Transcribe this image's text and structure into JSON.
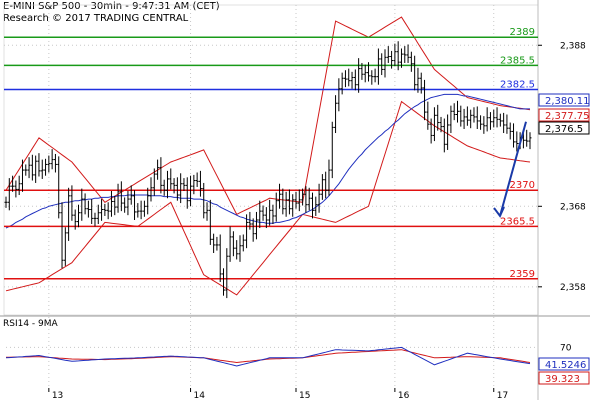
{
  "header": {
    "line1": "E-MINI S&P 500 - 30min - 9:47:31 AM (CET)",
    "line2": "Research © 2017 TRADING CENTRAL"
  },
  "colors": {
    "candles": "#000000",
    "ma": "#1f2fbf",
    "bands": "#d21a1a",
    "resistance": "#199a19",
    "pivot": "#1f2fe0",
    "support": "#e01010",
    "arrow": "#1a3aa8",
    "rsi": "#1f2fbf",
    "rsi_ma": "#d21a1a"
  },
  "chart_data": [
    {
      "type": "line",
      "subtype": "candlestick",
      "title": "E-MINI S&P 500 - 30min - 9:47:31 AM (CET)",
      "x_ticks": [
        "13",
        "14",
        "15",
        "16",
        "17"
      ],
      "y_ticks": [
        "2,388",
        "2,368",
        "2,358"
      ],
      "y_tick_values": [
        2388,
        2368,
        2358
      ],
      "ylim": [
        2354.5,
        2393
      ],
      "grid": true,
      "levels": [
        {
          "label": "2389",
          "value": 2389,
          "kind": "resistance"
        },
        {
          "label": "2385.5",
          "value": 2385.5,
          "kind": "resistance"
        },
        {
          "label": "2382.5",
          "value": 2382.5,
          "kind": "pivot"
        },
        {
          "label": "2370",
          "value": 2370,
          "kind": "support"
        },
        {
          "label": "2365.5",
          "value": 2365.5,
          "kind": "support"
        },
        {
          "label": "2359",
          "value": 2359,
          "kind": "support"
        }
      ],
      "price_boxes": [
        {
          "label": "2,380.11",
          "value": 2380.11,
          "kind": "ma"
        },
        {
          "label": "2,377.75",
          "value": 2377.75,
          "kind": "band"
        },
        {
          "label": "2,376.5",
          "value": 2376.5,
          "kind": "last"
        }
      ],
      "series": [
        {
          "name": "price",
          "x": [
            0,
            1,
            2,
            3,
            4,
            5,
            6,
            7,
            8,
            9,
            10,
            11,
            12,
            13,
            14,
            15,
            16,
            17,
            18,
            19,
            20,
            21,
            22,
            23,
            24,
            25,
            26,
            27,
            28,
            29,
            30,
            31,
            32,
            33,
            34,
            35,
            36,
            37,
            38,
            39,
            40,
            41,
            42,
            43,
            44,
            45,
            46,
            47,
            48,
            49,
            50,
            51,
            52,
            53,
            54,
            55,
            56,
            57,
            58,
            59,
            60,
            61,
            62,
            63,
            64,
            65,
            66,
            67,
            68,
            69,
            70,
            71,
            72,
            73,
            74,
            75,
            76,
            77,
            78,
            79,
            80,
            81,
            82,
            83,
            84,
            85,
            86,
            87,
            88,
            89,
            90,
            91,
            92,
            93,
            94,
            95,
            96,
            97,
            98,
            99,
            100,
            101,
            102,
            103,
            104,
            105,
            106,
            107,
            108,
            109,
            110,
            111,
            112,
            113,
            114,
            115,
            116,
            117,
            118,
            119,
            120,
            121,
            122,
            123,
            124,
            125,
            126,
            127,
            128,
            129,
            130,
            131,
            132,
            133,
            134,
            135,
            136,
            137,
            138,
            139,
            140,
            141,
            142,
            143,
            144,
            145,
            146,
            147,
            148,
            149,
            150,
            151,
            152,
            153,
            154,
            155,
            156,
            157,
            158,
            159
          ],
          "values": [
            2368.5,
            2370.5,
            2370.5,
            2370.1,
            2370.8,
            2372.5,
            2372.5,
            2373.1,
            2371.9,
            2373.6,
            2372.4,
            2372.5,
            2373.2,
            2373.3,
            2373.8,
            2373.2,
            2367.2,
            2361.3,
            2364.7,
            2369.3,
            2366.9,
            2366.1,
            2367.2,
            2368.9,
            2367.7,
            2367.6,
            2366.5,
            2366.5,
            2367.2,
            2367.6,
            2367.5,
            2367.4,
            2368.6,
            2367.9,
            2369.8,
            2368.4,
            2367.9,
            2368.9,
            2369.3,
            2367.3,
            2367.4,
            2367.4,
            2368.0,
            2369.3,
            2370.3,
            2372.0,
            2372.8,
            2370.6,
            2370.0,
            2371.4,
            2370.8,
            2370.6,
            2369.4,
            2370.8,
            2370.6,
            2368.7,
            2370.5,
            2371.2,
            2371.1,
            2370.2,
            2367.2,
            2367.5,
            2363.9,
            2363.2,
            2363.2,
            2359.6,
            2357.6,
            2361.8,
            2364.2,
            2362.8,
            2362.1,
            2363.1,
            2363.8,
            2366.0,
            2365.8,
            2364.6,
            2366.3,
            2367.4,
            2366.9,
            2366.3,
            2367.5,
            2366.8,
            2368.7,
            2369.5,
            2367.7,
            2368.8,
            2367.7,
            2368.8,
            2368.4,
            2368.8,
            2369.5,
            2368.2,
            2369.0,
            2367.5,
            2368.2,
            2369.5,
            2371.3,
            2370.0,
            2372.5,
            2377.8,
            2380.8,
            2382.6,
            2383.9,
            2383.8,
            2383.6,
            2384.0,
            2383.1,
            2385.1,
            2384.4,
            2384.6,
            2384.2,
            2384.1,
            2384.1,
            2386.3,
            2385.0,
            2386.5,
            2386.6,
            2386.1,
            2387.2,
            2385.9,
            2386.9,
            2386.8,
            2386.5,
            2385.7,
            2383.1,
            2383.9,
            2382.7,
            2379.7,
            2378.2,
            2376.8,
            2379.3,
            2378.4,
            2377.9,
            2375.7,
            2378.1,
            2379.8,
            2379.4,
            2379.8,
            2378.6,
            2379.1,
            2378.7,
            2379.3,
            2379.1,
            2378.6,
            2378.2,
            2378.0,
            2379.0,
            2378.5,
            2379.0,
            2378.8,
            2378.6,
            2378.1,
            2377.7,
            2377.3,
            2376.0,
            2375.8,
            2376.5,
            2376.2,
            2376.1,
            2376.5
          ]
        },
        {
          "name": "moving average",
          "x": [
            0,
            1,
            2,
            3,
            4,
            5,
            6,
            7,
            8,
            9,
            10,
            11,
            12,
            13,
            14,
            15,
            16,
            17,
            18,
            19,
            20,
            21,
            22,
            23,
            24,
            25,
            26,
            27,
            28,
            29,
            30,
            31,
            32,
            33,
            34,
            35,
            36,
            37,
            38,
            39,
            40,
            41,
            42,
            43,
            44,
            45,
            46,
            47,
            48,
            49,
            50,
            51,
            52,
            53,
            54,
            55,
            56,
            57,
            58,
            59,
            60,
            61,
            62,
            63,
            64,
            65,
            66,
            67,
            68,
            69,
            70,
            71,
            72,
            73,
            74,
            75,
            76,
            77,
            78,
            79,
            80,
            81,
            82,
            83,
            84,
            85,
            86,
            87,
            88,
            89,
            90,
            91,
            92,
            93,
            94,
            95,
            96,
            97,
            98,
            99,
            100,
            101,
            102,
            103,
            104,
            105,
            106,
            107,
            108,
            109,
            110,
            111,
            112,
            113,
            114,
            115,
            116,
            117,
            118,
            119,
            120,
            121,
            122,
            123,
            124,
            125,
            126,
            127,
            128,
            129,
            130,
            131,
            132,
            133,
            134,
            135,
            136,
            137,
            138,
            139,
            140,
            141,
            142,
            143,
            144,
            145,
            146,
            147,
            148,
            149,
            150,
            151,
            152,
            153,
            154,
            155,
            156,
            157,
            158,
            159
          ],
          "values": [
            2365.3,
            2365.5,
            2365.7,
            2366.0,
            2366.2,
            2366.4,
            2366.7,
            2366.9,
            2367.1,
            2367.3,
            2367.5,
            2367.7,
            2367.8,
            2368.0,
            2368.1,
            2368.2,
            2368.3,
            2368.4,
            2368.5,
            2368.5,
            2368.6,
            2368.7,
            2368.7,
            2368.8,
            2368.8,
            2368.9,
            2368.9,
            2369.0,
            2369.0,
            2369.1,
            2369.1,
            2369.1,
            2369.2,
            2369.2,
            2369.3,
            2369.3,
            2369.3,
            2369.4,
            2369.4,
            2369.4,
            2369.4,
            2369.4,
            2369.4,
            2369.4,
            2369.3,
            2369.3,
            2369.3,
            2369.3,
            2369.2,
            2369.2,
            2369.2,
            2369.1,
            2369.1,
            2369.0,
            2369.0,
            2369.0,
            2369.0,
            2368.9,
            2368.9,
            2368.9,
            2368.8,
            2368.7,
            2368.5,
            2368.3,
            2368.2,
            2367.9,
            2367.7,
            2367.5,
            2367.3,
            2367.1,
            2366.9,
            2366.7,
            2366.6,
            2366.4,
            2366.3,
            2366.2,
            2366.1,
            2366.0,
            2366.0,
            2365.9,
            2365.9,
            2365.9,
            2366.0,
            2366.0,
            2366.1,
            2366.2,
            2366.3,
            2366.5,
            2366.6,
            2366.8,
            2367.0,
            2367.2,
            2367.4,
            2367.6,
            2367.9,
            2368.2,
            2368.5,
            2368.9,
            2369.3,
            2369.8,
            2370.3,
            2370.8,
            2371.4,
            2372.0,
            2372.6,
            2373.1,
            2373.6,
            2374.1,
            2374.5,
            2375.0,
            2375.4,
            2375.8,
            2376.2,
            2376.6,
            2376.9,
            2377.3,
            2377.6,
            2378.0,
            2378.4,
            2378.7,
            2379.1,
            2379.5,
            2379.8,
            2380.1,
            2380.4,
            2380.6,
            2380.9,
            2381.1,
            2381.3,
            2381.5,
            2381.6,
            2381.7,
            2381.8,
            2381.9,
            2381.9,
            2381.9,
            2381.9,
            2381.9,
            2381.8,
            2381.7,
            2381.7,
            2381.6,
            2381.5,
            2381.4,
            2381.3,
            2381.2,
            2381.1,
            2381.0,
            2380.9,
            2380.8,
            2380.7,
            2380.6,
            2380.5,
            2380.4,
            2380.3,
            2380.2,
            2380.1,
            2380.1,
            2380.1,
            2380.1
          ]
        },
        {
          "name": "upper band",
          "x": [
            0,
            10,
            20,
            30,
            40,
            50,
            60,
            70,
            80,
            90,
            100,
            110,
            120,
            130,
            140,
            150,
            159
          ],
          "values": [
            2370.0,
            2376.5,
            2373.5,
            2368.5,
            2371.0,
            2373.5,
            2375.0,
            2367.0,
            2369.0,
            2368.5,
            2391.0,
            2389.0,
            2391.5,
            2385.0,
            2381.5,
            2380.5,
            2380.0
          ]
        },
        {
          "name": "lower band",
          "x": [
            0,
            10,
            20,
            30,
            40,
            50,
            60,
            70,
            80,
            90,
            100,
            110,
            120,
            130,
            140,
            150,
            159
          ],
          "values": [
            2357.5,
            2358.5,
            2361.0,
            2366.0,
            2365.5,
            2368.5,
            2359.5,
            2357.0,
            2362.0,
            2367.0,
            2366.0,
            2368.0,
            2381.0,
            2378.0,
            2375.5,
            2374.0,
            2373.5
          ]
        }
      ]
    },
    {
      "type": "line",
      "title": "RSI14 - 9MA",
      "y_ticks": [
        "70"
      ],
      "y_tick_values": [
        70
      ],
      "ylim": [
        0,
        100
      ],
      "price_boxes": [
        {
          "label": "41.5246",
          "value": 41.5246,
          "kind": "rsi"
        },
        {
          "label": "39.323",
          "value": 39.323,
          "kind": "rsi_ma"
        }
      ],
      "series": [
        {
          "name": "RSI14",
          "x": [
            0,
            10,
            20,
            30,
            40,
            50,
            60,
            70,
            80,
            90,
            100,
            110,
            120,
            130,
            140,
            150,
            159
          ],
          "values": [
            52,
            56,
            46,
            50,
            52,
            55,
            52,
            38,
            52,
            52,
            66,
            64,
            70,
            40,
            60,
            50,
            42
          ]
        },
        {
          "name": "9MA",
          "x": [
            0,
            10,
            20,
            30,
            40,
            50,
            60,
            70,
            80,
            90,
            100,
            110,
            120,
            130,
            140,
            150,
            159
          ],
          "values": [
            53,
            54,
            50,
            49,
            51,
            54,
            52,
            44,
            50,
            52,
            60,
            63,
            66,
            52,
            54,
            52,
            44
          ]
        }
      ]
    }
  ]
}
